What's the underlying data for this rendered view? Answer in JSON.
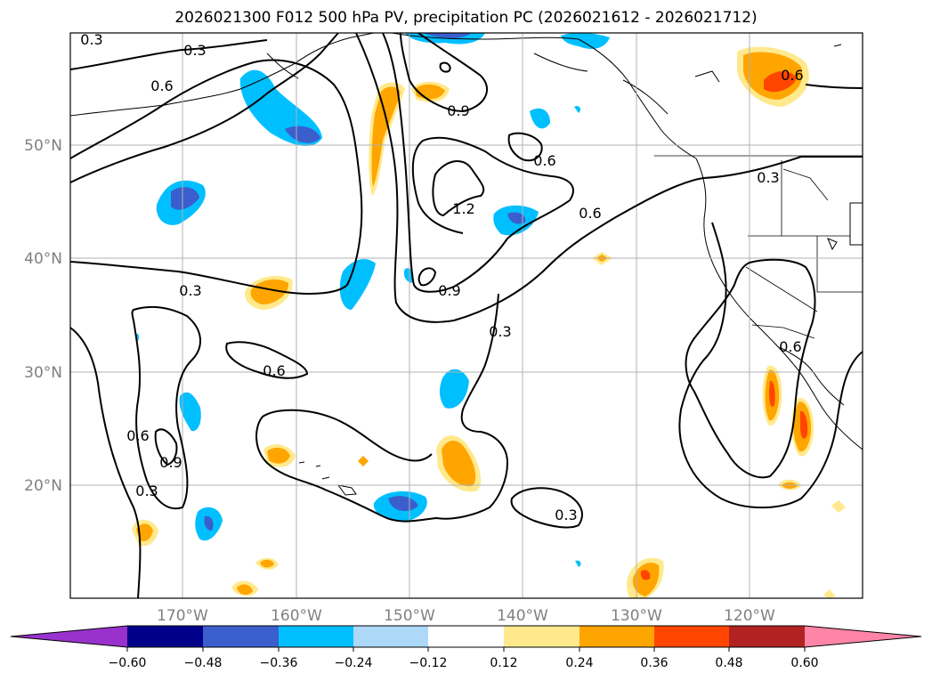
{
  "title": "2026021300 F012 500 hPa PV, precipitation PC (2026021612 - 2026021712)",
  "latitude_labels": [
    "50°N",
    "40°N",
    "30°N",
    "20°N"
  ],
  "longitude_labels": [
    "170°W",
    "160°W",
    "150°W",
    "140°W",
    "130°W",
    "120°W"
  ],
  "contour_labels": [
    "0.3",
    "0.3",
    "0.6",
    "0.6",
    "0.9",
    "0.6",
    "0.3",
    "1.2",
    "0.6",
    "0.3",
    "0.9",
    "0.3",
    "0.6",
    "0.6",
    "0.9",
    "0.3",
    "0.3",
    "0.6"
  ],
  "colorbar": {
    "ticks": [
      "−0.60",
      "−0.48",
      "−0.36",
      "−0.24",
      "−0.12",
      "0.12",
      "0.24",
      "0.36",
      "0.48",
      "0.60"
    ],
    "colors": [
      "#9932cc",
      "#00008b",
      "#3a5fcd",
      "#00bfff",
      "#add8f7",
      "#ffffff",
      "#ffe98c",
      "#ffa500",
      "#ff4500",
      "#b22222",
      "#ff85a8"
    ]
  }
}
